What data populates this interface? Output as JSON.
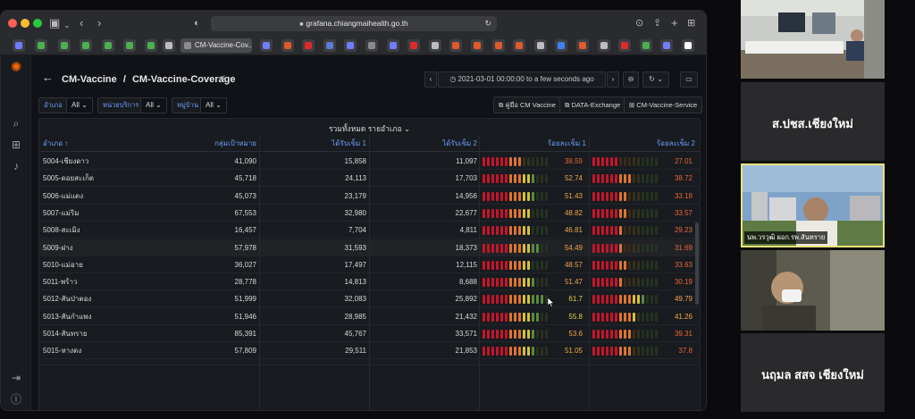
{
  "browser": {
    "url": "grafana.chiangmaihealth.go.th",
    "active_tab_label": "CM-Vaccine-Cov..."
  },
  "header": {
    "breadcrumb_folder": "CM-Vaccine",
    "breadcrumb_separator": "/",
    "breadcrumb_dashboard": "CM-Vaccine-Coverage",
    "time_range": "2021-03-01 00:00:00 to a few seconds ago"
  },
  "variables": [
    {
      "label": "อำเภอ",
      "value": "All"
    },
    {
      "label": "หน่วยบริการ",
      "value": "All"
    },
    {
      "label": "หมู่บ้าน",
      "value": "All"
    }
  ],
  "links": [
    {
      "label": "คู่มือ CM Vaccine"
    },
    {
      "label": "DATA-Exchange"
    },
    {
      "label": "CM-Vaccine-Service"
    }
  ],
  "panel": {
    "title": "รวมทั้งหมด รายอำเภอ",
    "columns": [
      "อำเภอ ↑",
      "กลุ่มเป้าหมาย",
      "ได้รับเข็ม 1",
      "ได้รับเข็ม 2",
      "ร้อยละเข็ม 1",
      "ร้อยละเข็ม 2"
    ],
    "rows": [
      {
        "district": "5004-เชียงดาว",
        "target": "41,090",
        "dose1": "15,858",
        "dose2": "11,097",
        "pct1": 38.59,
        "pct2": 27.01
      },
      {
        "district": "5005-ดอยสะเก็ด",
        "target": "45,718",
        "dose1": "24,113",
        "dose2": "17,703",
        "pct1": 52.74,
        "pct2": 38.72
      },
      {
        "district": "5006-แม่แตง",
        "target": "45,073",
        "dose1": "23,179",
        "dose2": "14,956",
        "pct1": 51.43,
        "pct2": 33.18
      },
      {
        "district": "5007-แม่ริม",
        "target": "67,553",
        "dose1": "32,980",
        "dose2": "22,677",
        "pct1": 48.82,
        "pct2": 33.57
      },
      {
        "district": "5008-สะเมิง",
        "target": "16,457",
        "dose1": "7,704",
        "dose2": "4,811",
        "pct1": 46.81,
        "pct2": 29.23
      },
      {
        "district": "5009-ฝาง",
        "target": "57,978",
        "dose1": "31,593",
        "dose2": "18,373",
        "pct1": 54.49,
        "pct2": 31.69
      },
      {
        "district": "5010-แม่อาย",
        "target": "36,027",
        "dose1": "17,497",
        "dose2": "12,115",
        "pct1": 48.57,
        "pct2": 33.63
      },
      {
        "district": "5011-พร้าว",
        "target": "28,778",
        "dose1": "14,813",
        "dose2": "8,688",
        "pct1": 51.47,
        "pct2": 30.19
      },
      {
        "district": "5012-สันป่าตอง",
        "target": "51,999",
        "dose1": "32,083",
        "dose2": "25,892",
        "pct1": 61.7,
        "pct2": 49.79
      },
      {
        "district": "5013-สันกำแพง",
        "target": "51,946",
        "dose1": "28,985",
        "dose2": "21,432",
        "pct1": 55.8,
        "pct2": 41.26
      },
      {
        "district": "5014-สันทราย",
        "target": "85,391",
        "dose1": "45,767",
        "dose2": "33,571",
        "pct1": 53.6,
        "pct2": 39.31
      },
      {
        "district": "5015-หางดง",
        "target": "57,809",
        "dose1": "29,511",
        "dose2": "21,853",
        "pct1": 51.05,
        "pct2": 37.8
      }
    ]
  },
  "video_tiles": [
    {
      "name": "",
      "caption": ""
    },
    {
      "name": "ส.ปชส.เชียงใหม่",
      "caption": ""
    },
    {
      "name": "",
      "caption": "นพ.วรวุฒิ ผอก.รพ.สันทราย"
    },
    {
      "name": "",
      "caption": ""
    },
    {
      "name": "นฤมล สสจ เชียงใหม่",
      "caption": ""
    }
  ],
  "colors": {
    "accent_blue": "#6e9fff",
    "gauge_red": "#c4162a",
    "gauge_orange": "#e0752d",
    "gauge_yellow": "#d4c23a",
    "gauge_green": "#3a5a2e",
    "speaker_border": "#e8e27a"
  }
}
